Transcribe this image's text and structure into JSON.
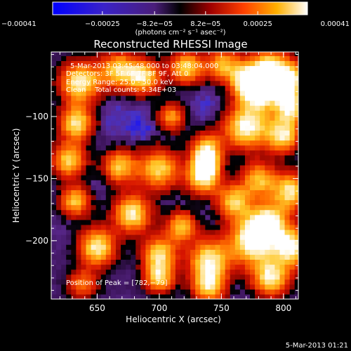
{
  "chart_data": {
    "type": "heatmap",
    "title": "Reconstructed RHESSI Image",
    "xlabel": "Heliocentric X (arcsec)",
    "ylabel": "Heliocentric Y (arcsec)",
    "xlim": [
      613,
      812
    ],
    "ylim": [
      -247,
      -48
    ],
    "x_ticks": [
      "650",
      "700",
      "750",
      "800"
    ],
    "y_ticks": [
      "−100",
      "−150",
      "−200"
    ],
    "x_tick_values": [
      650,
      700,
      750,
      800
    ],
    "y_tick_values": [
      -100,
      -150,
      -200
    ],
    "colorbar": {
      "ticks": [
        "−0.00041",
        "−0.00025",
        "−8.2e−05",
        "8.2e−05",
        "0.00025",
        "0.00041"
      ],
      "tick_values": [
        -0.00041,
        -0.00025,
        -8.2e-05,
        8.2e-05,
        0.00025,
        0.00041
      ],
      "range": [
        -0.00041,
        0.00041
      ],
      "units": "(photons cm⁻² s⁻¹ asec⁻²)"
    },
    "annotations": [
      "5-Mar-2013 03:45:48.000 to 03:48:04.000",
      "Detectors: 3F 5F 6F 7F 8F 9F, Att 0",
      "Energy Range: 25.0 - 50.0 keV",
      "Clean    Total counts: 5.34E+03"
    ],
    "peak_label": "Position of Peak = [782,−79]",
    "peak_position": [
      782,
      -79
    ],
    "blobs": [
      [
        636,
        -72,
        0.95,
        12
      ],
      [
        667,
        -62,
        0.8,
        11
      ],
      [
        688,
        -68,
        0.85,
        10
      ],
      [
        722,
        -60,
        0.85,
        10
      ],
      [
        752,
        -58,
        0.75,
        10
      ],
      [
        770,
        -72,
        0.75,
        9
      ],
      [
        788,
        -60,
        0.85,
        12
      ],
      [
        806,
        -70,
        0.9,
        10
      ],
      [
        782,
        -79,
        1.0,
        11
      ],
      [
        806,
        -92,
        0.9,
        9
      ],
      [
        633,
        -105,
        0.9,
        10
      ],
      [
        710,
        -100,
        0.7,
        8
      ],
      [
        770,
        -108,
        1.0,
        13
      ],
      [
        800,
        -115,
        0.9,
        10
      ],
      [
        627,
        -135,
        0.85,
        10
      ],
      [
        738,
        -125,
        0.75,
        9
      ],
      [
        738,
        -138,
        0.75,
        8
      ],
      [
        668,
        -140,
        0.8,
        10
      ],
      [
        700,
        -142,
        0.85,
        12
      ],
      [
        735,
        -150,
        0.8,
        10
      ],
      [
        780,
        -150,
        0.75,
        10
      ],
      [
        806,
        -160,
        0.9,
        11
      ],
      [
        632,
        -168,
        0.8,
        9
      ],
      [
        678,
        -178,
        0.95,
        11
      ],
      [
        760,
        -168,
        0.8,
        10
      ],
      [
        718,
        -188,
        0.8,
        9
      ],
      [
        788,
        -185,
        0.85,
        11
      ],
      [
        775,
        -200,
        1.0,
        14
      ],
      [
        808,
        -205,
        0.95,
        11
      ],
      [
        650,
        -205,
        0.95,
        11
      ],
      [
        700,
        -210,
        0.85,
        10
      ],
      [
        740,
        -215,
        0.9,
        12
      ],
      [
        700,
        -230,
        0.8,
        9
      ],
      [
        740,
        -237,
        0.8,
        10
      ],
      [
        790,
        -230,
        0.9,
        11
      ],
      [
        638,
        -235,
        0.6,
        9
      ]
    ],
    "negative_regions": [
      [
        650,
        -145,
        0.9,
        14
      ],
      [
        728,
        -172,
        1.0,
        12
      ],
      [
        745,
        -90,
        0.7,
        14
      ],
      [
        690,
        -110,
        0.8,
        14
      ],
      [
        655,
        -95,
        0.7,
        12
      ],
      [
        690,
        -165,
        0.8,
        12
      ],
      [
        760,
        -235,
        0.6,
        12
      ],
      [
        630,
        -190,
        0.6,
        10
      ],
      [
        760,
        -125,
        0.6,
        10
      ]
    ]
  },
  "footer": {
    "timestamp": "5-Mar-2013 01:21"
  },
  "colors": {
    "background": "#000000",
    "text": "#ffffff",
    "min": "#0000ff",
    "mid": "#000000",
    "max": "#ffffff"
  }
}
